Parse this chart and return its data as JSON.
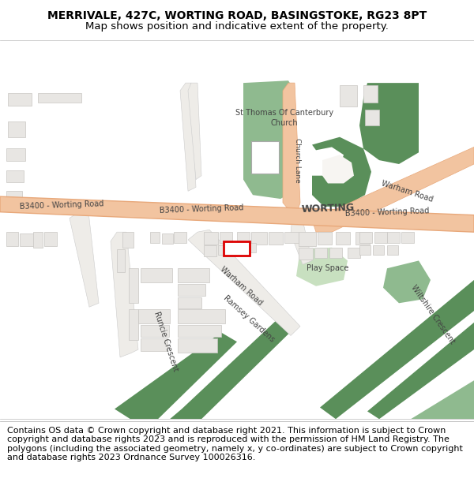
{
  "title": "MERRIVALE, 427C, WORTING ROAD, BASINGSTOKE, RG23 8PT",
  "subtitle": "Map shows position and indicative extent of the property.",
  "footer": "Contains OS data © Crown copyright and database right 2021. This information is subject to Crown copyright and database rights 2023 and is reproduced with the permission of HM Land Registry. The polygons (including the associated geometry, namely x, y co-ordinates) are subject to Crown copyright and database rights 2023 Ordnance Survey 100026316.",
  "map_bg": "#f7f5f2",
  "road_color": "#f2c4a0",
  "road_border": "#e8a87a",
  "building_color": "#e8e6e3",
  "building_border": "#c8c6c3",
  "green_dark": "#5a8f5a",
  "green_light": "#8fba8f",
  "green_pale": "#c8e0c0",
  "property_color": "#dd0000",
  "title_fontsize": 10,
  "subtitle_fontsize": 9.5,
  "footer_fontsize": 8.0,
  "label_color": "#444444"
}
